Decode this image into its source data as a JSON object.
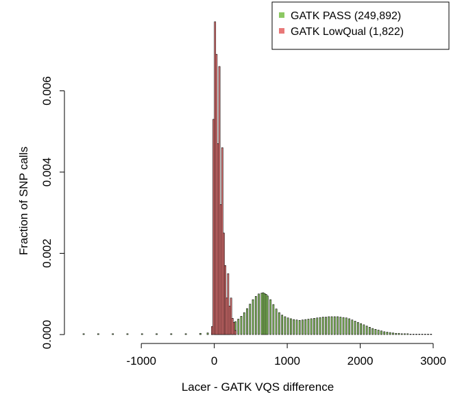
{
  "chart_data": {
    "type": "bar",
    "subtype": "overlaid-histogram",
    "title": "",
    "xlabel": "Lacer - GATK VQS difference",
    "ylabel": "Fraction of SNP calls",
    "xlim": [
      -1800,
      3000
    ],
    "ylim": [
      0,
      0.0078
    ],
    "xticks": [
      -1000,
      0,
      1000,
      2000,
      3000
    ],
    "xtick_labels": [
      "-1000",
      "0",
      "1000",
      "2000",
      "3000"
    ],
    "yticks": [
      0.0,
      0.002,
      0.004,
      0.006
    ],
    "ytick_labels": [
      "0.000",
      "0.002",
      "0.004",
      "0.006"
    ],
    "grid": false,
    "legend_position": "top-right",
    "series": [
      {
        "name": "GATK PASS (249,892)",
        "color": "#8cc863",
        "bin_width": 20,
        "x": [
          -1800,
          -1600,
          -1400,
          -1200,
          -1000,
          -800,
          -600,
          -400,
          -200,
          -100,
          -40,
          0,
          20,
          40,
          60,
          80,
          100,
          120,
          140,
          160,
          180,
          200,
          240,
          280,
          320,
          360,
          400,
          440,
          480,
          520,
          560,
          600,
          640,
          660,
          680,
          700,
          720,
          760,
          800,
          840,
          880,
          920,
          960,
          1000,
          1040,
          1080,
          1120,
          1160,
          1200,
          1240,
          1280,
          1320,
          1360,
          1400,
          1440,
          1480,
          1520,
          1560,
          1600,
          1640,
          1680,
          1720,
          1760,
          1800,
          1840,
          1880,
          1920,
          1960,
          2000,
          2040,
          2080,
          2120,
          2160,
          2200,
          2240,
          2280,
          2320,
          2360,
          2400,
          2440,
          2480,
          2520,
          2560,
          2600,
          2640,
          2680,
          2720,
          2760,
          2800,
          2840,
          2880,
          2920,
          2960
        ],
        "y": [
          2e-05,
          2e-05,
          2e-05,
          2e-05,
          2e-05,
          2e-05,
          2e-05,
          2e-05,
          3e-05,
          4e-05,
          5e-05,
          8e-05,
          0.00011,
          0.00012,
          0.00014,
          0.00015,
          0.00016,
          0.00017,
          0.00018,
          0.00019,
          0.0002,
          0.00022,
          0.00026,
          0.00032,
          0.00038,
          0.00045,
          0.00054,
          0.00064,
          0.00075,
          0.00086,
          0.00094,
          0.001,
          0.00102,
          0.00103,
          0.00101,
          0.00099,
          0.00095,
          0.00086,
          0.00074,
          0.00063,
          0.00054,
          0.00048,
          0.00044,
          0.00041,
          0.00039,
          0.00037,
          0.00036,
          0.00035,
          0.00036,
          0.00037,
          0.00038,
          0.00039,
          0.0004,
          0.00041,
          0.00042,
          0.00043,
          0.00043,
          0.00044,
          0.00044,
          0.00044,
          0.00044,
          0.00043,
          0.00042,
          0.00041,
          0.00039,
          0.00036,
          0.00033,
          0.0003,
          0.00027,
          0.00024,
          0.00021,
          0.00018,
          0.00015,
          0.00013,
          0.00011,
          9e-05,
          7e-05,
          6e-05,
          5e-05,
          4e-05,
          3e-05,
          3e-05,
          2e-05,
          2e-05,
          2e-05,
          1e-05,
          1e-05,
          1e-05,
          1e-05,
          1e-05,
          1e-05,
          1e-05,
          1e-05
        ]
      },
      {
        "name": "GATK LowQual (1,822)",
        "color": "#e87878",
        "bin_width": 20,
        "x": [
          -40,
          -20,
          0,
          20,
          40,
          60,
          80,
          100,
          120,
          140,
          160,
          180,
          200,
          220,
          240,
          260,
          280
        ],
        "y": [
          0.0002,
          0.0053,
          0.0077,
          0.0069,
          0.0047,
          0.0066,
          0.0032,
          0.0046,
          0.0025,
          0.0017,
          0.0009,
          0.0015,
          0.0007,
          0.0009,
          0.0004,
          0.0003,
          0.0001
        ]
      }
    ]
  }
}
